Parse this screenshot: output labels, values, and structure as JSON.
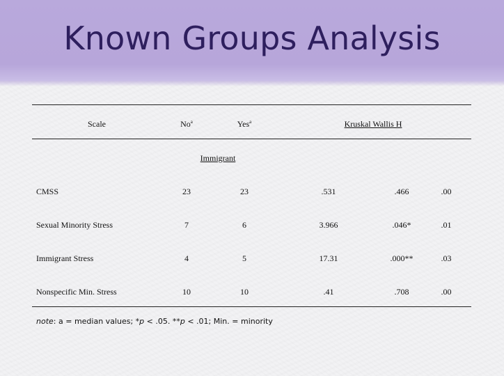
{
  "slide": {
    "title": "Known Groups Analysis"
  },
  "table": {
    "headers": {
      "scale": "Scale",
      "no": "No",
      "no_sup": "a",
      "yes": "Yes",
      "yes_sup": "a",
      "kw": "Kruskal Wallis H"
    },
    "group_label": "Immigrant",
    "rows": [
      {
        "scale": "CMSS",
        "no": "23",
        "yes": "23",
        "h": ".531",
        "p": ".466",
        "effect": ".00"
      },
      {
        "scale": "Sexual Minority Stress",
        "no": "7",
        "yes": "6",
        "h": "3.966",
        "p": ".046*",
        "effect": ".01"
      },
      {
        "scale": "Immigrant Stress",
        "no": "4",
        "yes": "5",
        "h": "17.31",
        "p": ".000**",
        "effect": ".03"
      },
      {
        "scale": "Nonspecific Min. Stress",
        "no": "10",
        "yes": "10",
        "h": ".41",
        "p": ".708",
        "effect": ".00"
      }
    ]
  },
  "note": {
    "label": "note",
    "part1": ": a = median values;  *",
    "p1": "p",
    "part2": " < .05. **",
    "p2": "p",
    "part3": " < .01; Min. = minority"
  }
}
